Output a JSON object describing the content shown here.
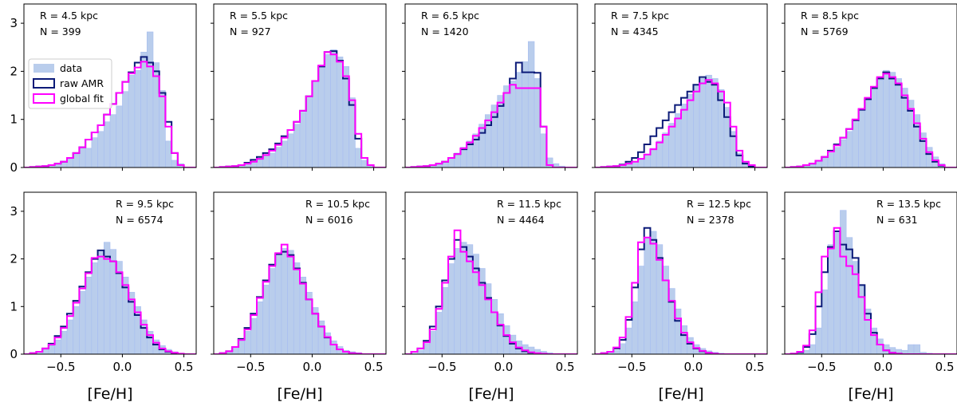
{
  "figure": {
    "xlabel": "[Fe/H]",
    "xlim": [
      -0.8,
      0.6
    ],
    "ylim": [
      0,
      3.4
    ],
    "xticks": [
      -0.5,
      0.0,
      0.5
    ],
    "xtick_labels": [
      "−0.5",
      "0.0",
      "0.5"
    ],
    "yticks": [
      0,
      1,
      2,
      3
    ],
    "ytick_labels": [
      "0",
      "1",
      "2",
      "3"
    ],
    "bin_edges": [
      -0.8,
      -0.75,
      -0.7,
      -0.65,
      -0.6,
      -0.55,
      -0.5,
      -0.45,
      -0.4,
      -0.35,
      -0.3,
      -0.25,
      -0.2,
      -0.15,
      -0.1,
      -0.05,
      0.0,
      0.05,
      0.1,
      0.15,
      0.2,
      0.25,
      0.3,
      0.35,
      0.4,
      0.45,
      0.5,
      0.55,
      0.6
    ]
  },
  "legend": {
    "placement": "upper-left of first panel",
    "entries": [
      {
        "label": "data",
        "style": "fill",
        "color": "#b9cdec"
      },
      {
        "label": "raw AMR",
        "style": "step",
        "color": "#0b1a78"
      },
      {
        "label": "global fit",
        "style": "step",
        "color": "#ff00ff"
      }
    ]
  },
  "chart_data": [
    {
      "type": "bar",
      "R_label": "R = 4.5 kpc",
      "N_label": "N = 399",
      "data": [
        0,
        0.01,
        0.02,
        0.03,
        0.05,
        0.08,
        0.12,
        0.18,
        0.28,
        0.42,
        0.4,
        0.62,
        0.75,
        0.95,
        1.1,
        1.28,
        1.58,
        1.92,
        2.02,
        2.4,
        2.82,
        2.18,
        1.6,
        0.55,
        0.15,
        0.08,
        0,
        0
      ],
      "raw": [
        0,
        0.01,
        0.02,
        0.03,
        0.05,
        0.08,
        0.12,
        0.2,
        0.3,
        0.42,
        0.58,
        0.73,
        0.88,
        1.1,
        1.32,
        1.55,
        1.78,
        1.98,
        2.18,
        2.3,
        2.18,
        2.0,
        1.55,
        0.95,
        0.3,
        0.05,
        0,
        0
      ],
      "fit": [
        0,
        0.01,
        0.02,
        0.03,
        0.05,
        0.08,
        0.12,
        0.2,
        0.3,
        0.42,
        0.58,
        0.73,
        0.88,
        1.1,
        1.32,
        1.55,
        1.78,
        1.96,
        2.08,
        2.2,
        2.1,
        1.9,
        1.48,
        0.85,
        0.3,
        0.05,
        0,
        0
      ]
    },
    {
      "type": "bar",
      "R_label": "R = 5.5 kpc",
      "N_label": "N = 927",
      "data": [
        0,
        0.01,
        0.02,
        0.03,
        0.05,
        0.08,
        0.12,
        0.18,
        0.25,
        0.3,
        0.42,
        0.55,
        0.7,
        0.9,
        1.15,
        1.45,
        1.78,
        2.1,
        2.35,
        2.45,
        2.3,
        2.1,
        1.45,
        0.4,
        0.15,
        0.05,
        0,
        0
      ],
      "raw": [
        0,
        0.01,
        0.02,
        0.03,
        0.05,
        0.1,
        0.16,
        0.22,
        0.3,
        0.38,
        0.5,
        0.65,
        0.78,
        0.95,
        1.18,
        1.48,
        1.8,
        2.1,
        2.4,
        2.42,
        2.22,
        1.85,
        1.3,
        0.6,
        0.2,
        0.05,
        0,
        0
      ],
      "fit": [
        0,
        0.01,
        0.02,
        0.03,
        0.05,
        0.08,
        0.12,
        0.18,
        0.26,
        0.35,
        0.47,
        0.62,
        0.78,
        0.95,
        1.18,
        1.48,
        1.8,
        2.12,
        2.4,
        2.35,
        2.2,
        1.9,
        1.4,
        0.7,
        0.2,
        0.05,
        0,
        0
      ]
    },
    {
      "type": "bar",
      "R_label": "R = 6.5 kpc",
      "N_label": "N = 1420",
      "data": [
        0,
        0.01,
        0.02,
        0.03,
        0.05,
        0.08,
        0.12,
        0.2,
        0.3,
        0.42,
        0.55,
        0.7,
        0.9,
        1.1,
        1.3,
        1.5,
        1.7,
        1.8,
        1.98,
        2.2,
        2.62,
        1.85,
        0.7,
        0.2,
        0.08,
        0.03,
        0,
        0
      ],
      "raw": [
        0,
        0.01,
        0.02,
        0.03,
        0.05,
        0.08,
        0.12,
        0.2,
        0.28,
        0.38,
        0.48,
        0.58,
        0.72,
        0.88,
        1.05,
        1.28,
        1.55,
        1.85,
        2.18,
        1.98,
        1.98,
        1.97,
        0.85,
        0.05,
        0,
        0,
        0,
        0
      ],
      "fit": [
        0,
        0.01,
        0.02,
        0.03,
        0.05,
        0.08,
        0.12,
        0.2,
        0.28,
        0.4,
        0.52,
        0.66,
        0.82,
        0.98,
        1.15,
        1.35,
        1.55,
        1.72,
        1.65,
        1.65,
        1.65,
        1.65,
        0.85,
        0.05,
        0,
        0,
        0,
        0
      ]
    },
    {
      "type": "bar",
      "R_label": "R = 7.5 kpc",
      "N_label": "N = 4345",
      "data": [
        0,
        0.01,
        0.02,
        0.03,
        0.05,
        0.08,
        0.12,
        0.18,
        0.28,
        0.4,
        0.55,
        0.72,
        0.92,
        1.12,
        1.32,
        1.52,
        1.72,
        1.85,
        1.92,
        1.85,
        1.62,
        1.25,
        0.75,
        0.3,
        0.12,
        0.05,
        0,
        0
      ],
      "raw": [
        0,
        0.01,
        0.02,
        0.03,
        0.06,
        0.12,
        0.2,
        0.32,
        0.48,
        0.65,
        0.82,
        0.98,
        1.15,
        1.3,
        1.45,
        1.58,
        1.72,
        1.88,
        1.78,
        1.72,
        1.4,
        1.05,
        0.65,
        0.25,
        0.08,
        0.02,
        0,
        0
      ],
      "fit": [
        0,
        0.01,
        0.02,
        0.03,
        0.05,
        0.08,
        0.12,
        0.18,
        0.27,
        0.38,
        0.52,
        0.68,
        0.85,
        1.02,
        1.2,
        1.4,
        1.58,
        1.75,
        1.82,
        1.75,
        1.58,
        1.35,
        0.85,
        0.35,
        0.12,
        0.05,
        0,
        0
      ]
    },
    {
      "type": "bar",
      "R_label": "R = 8.5 kpc",
      "N_label": "N = 5769",
      "data": [
        0,
        0.01,
        0.02,
        0.04,
        0.07,
        0.12,
        0.2,
        0.3,
        0.42,
        0.58,
        0.75,
        0.95,
        1.18,
        1.4,
        1.62,
        1.82,
        2.02,
        1.98,
        1.85,
        1.65,
        1.4,
        1.1,
        0.72,
        0.42,
        0.22,
        0.08,
        0,
        0
      ],
      "raw": [
        0,
        0.01,
        0.02,
        0.05,
        0.08,
        0.14,
        0.22,
        0.35,
        0.48,
        0.62,
        0.8,
        0.98,
        1.2,
        1.42,
        1.65,
        1.85,
        1.98,
        1.85,
        1.72,
        1.45,
        1.18,
        0.85,
        0.55,
        0.28,
        0.12,
        0.04,
        0,
        0
      ],
      "fit": [
        0,
        0.01,
        0.02,
        0.05,
        0.08,
        0.14,
        0.22,
        0.33,
        0.46,
        0.62,
        0.8,
        1.0,
        1.22,
        1.45,
        1.68,
        1.88,
        1.95,
        1.88,
        1.75,
        1.5,
        1.22,
        0.92,
        0.6,
        0.32,
        0.15,
        0.05,
        0,
        0
      ]
    },
    {
      "type": "bar",
      "R_label": "R = 9.5 kpc",
      "N_label": "N = 6574",
      "data": [
        0,
        0.02,
        0.05,
        0.1,
        0.18,
        0.3,
        0.48,
        0.72,
        1.0,
        1.32,
        1.62,
        1.92,
        2.15,
        2.35,
        2.2,
        1.95,
        1.62,
        1.3,
        1.0,
        0.72,
        0.48,
        0.3,
        0.18,
        0.1,
        0.05,
        0.02,
        0,
        0
      ],
      "raw": [
        0,
        0.02,
        0.05,
        0.12,
        0.22,
        0.38,
        0.58,
        0.85,
        1.12,
        1.42,
        1.72,
        2.0,
        2.18,
        2.05,
        1.95,
        1.7,
        1.4,
        1.1,
        0.82,
        0.55,
        0.35,
        0.2,
        0.1,
        0.05,
        0.02,
        0,
        0,
        0
      ],
      "fit": [
        0,
        0.02,
        0.05,
        0.12,
        0.2,
        0.35,
        0.55,
        0.8,
        1.08,
        1.38,
        1.7,
        2.02,
        2.05,
        2.0,
        1.95,
        1.72,
        1.45,
        1.15,
        0.88,
        0.62,
        0.4,
        0.24,
        0.12,
        0.06,
        0.03,
        0.01,
        0,
        0
      ]
    },
    {
      "type": "bar",
      "R_label": "R = 10.5 kpc",
      "N_label": "N = 6016",
      "data": [
        0,
        0.02,
        0.06,
        0.14,
        0.28,
        0.48,
        0.75,
        1.1,
        1.45,
        1.8,
        2.1,
        2.22,
        2.18,
        1.92,
        1.62,
        1.3,
        0.98,
        0.7,
        0.45,
        0.28,
        0.16,
        0.08,
        0.05,
        0.03,
        0.01,
        0,
        0,
        0
      ],
      "raw": [
        0,
        0.02,
        0.06,
        0.15,
        0.32,
        0.55,
        0.85,
        1.2,
        1.55,
        1.88,
        2.1,
        2.15,
        2.08,
        1.8,
        1.5,
        1.15,
        0.85,
        0.58,
        0.35,
        0.2,
        0.1,
        0.05,
        0.02,
        0.01,
        0,
        0,
        0,
        0
      ],
      "fit": [
        0,
        0.02,
        0.06,
        0.15,
        0.3,
        0.52,
        0.82,
        1.18,
        1.52,
        1.85,
        2.12,
        2.3,
        2.05,
        1.78,
        1.48,
        1.15,
        0.85,
        0.58,
        0.36,
        0.2,
        0.1,
        0.05,
        0.02,
        0.01,
        0,
        0,
        0,
        0
      ]
    },
    {
      "type": "bar",
      "R_label": "R = 11.5 kpc",
      "N_label": "N = 4464",
      "data": [
        0,
        0.02,
        0.08,
        0.22,
        0.48,
        0.88,
        1.4,
        1.9,
        2.22,
        2.35,
        2.3,
        2.1,
        1.8,
        1.48,
        1.15,
        0.85,
        0.6,
        0.4,
        0.28,
        0.2,
        0.15,
        0.1,
        0.06,
        0.03,
        0.01,
        0,
        0,
        0
      ],
      "raw": [
        0,
        0.05,
        0.12,
        0.28,
        0.58,
        1.0,
        1.55,
        2.0,
        2.4,
        2.25,
        2.05,
        1.8,
        1.5,
        1.18,
        0.88,
        0.6,
        0.38,
        0.22,
        0.12,
        0.06,
        0.03,
        0.01,
        0,
        0,
        0,
        0,
        0,
        0
      ],
      "fit": [
        0,
        0.05,
        0.12,
        0.25,
        0.52,
        0.95,
        1.5,
        2.05,
        2.6,
        2.15,
        1.95,
        1.72,
        1.45,
        1.15,
        0.88,
        0.62,
        0.4,
        0.25,
        0.14,
        0.08,
        0.04,
        0.02,
        0.01,
        0,
        0,
        0,
        0,
        0
      ]
    },
    {
      "type": "bar",
      "R_label": "R = 12.5 kpc",
      "N_label": "N = 2378",
      "data": [
        0,
        0.01,
        0.03,
        0.08,
        0.22,
        0.55,
        1.1,
        1.85,
        2.45,
        2.58,
        2.3,
        1.85,
        1.38,
        0.95,
        0.6,
        0.35,
        0.2,
        0.12,
        0.07,
        0.04,
        0.02,
        0.01,
        0,
        0,
        0,
        0,
        0,
        0
      ],
      "raw": [
        0,
        0.02,
        0.05,
        0.12,
        0.3,
        0.72,
        1.4,
        2.2,
        2.65,
        2.4,
        2.02,
        1.55,
        1.1,
        0.7,
        0.4,
        0.22,
        0.12,
        0.06,
        0.03,
        0.01,
        0,
        0,
        0,
        0,
        0,
        0,
        0,
        0
      ],
      "fit": [
        0,
        0.02,
        0.05,
        0.14,
        0.35,
        0.78,
        1.5,
        2.35,
        2.45,
        2.32,
        1.98,
        1.55,
        1.12,
        0.75,
        0.45,
        0.25,
        0.13,
        0.07,
        0.03,
        0.01,
        0,
        0,
        0,
        0,
        0,
        0,
        0,
        0
      ]
    },
    {
      "type": "bar",
      "R_label": "R = 13.5 kpc",
      "N_label": "N = 631",
      "data": [
        0,
        0.01,
        0.03,
        0.08,
        0.2,
        0.55,
        1.35,
        2.3,
        2.55,
        3.02,
        2.45,
        1.95,
        1.45,
        0.95,
        0.55,
        0.32,
        0.2,
        0.14,
        0.1,
        0.08,
        0.2,
        0.2,
        0.04,
        0.02,
        0,
        0,
        0,
        0
      ],
      "raw": [
        0,
        0.01,
        0.04,
        0.15,
        0.42,
        1.0,
        1.72,
        2.25,
        2.58,
        2.3,
        2.2,
        2.02,
        1.45,
        0.85,
        0.45,
        0.2,
        0.08,
        0.03,
        0.01,
        0,
        0,
        0,
        0,
        0,
        0,
        0,
        0,
        0
      ],
      "fit": [
        0,
        0.01,
        0.05,
        0.18,
        0.5,
        1.3,
        2.05,
        2.22,
        2.65,
        2.05,
        1.85,
        1.68,
        1.2,
        0.72,
        0.4,
        0.2,
        0.08,
        0.03,
        0.01,
        0,
        0,
        0,
        0,
        0,
        0,
        0,
        0,
        0
      ]
    }
  ]
}
